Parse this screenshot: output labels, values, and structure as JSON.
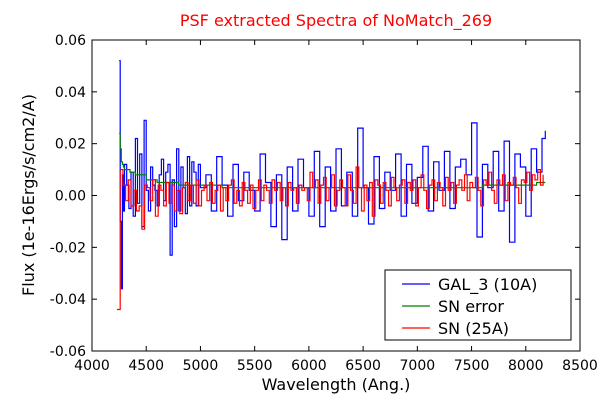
{
  "chart_data": {
    "type": "line",
    "title": "PSF extracted Spectra of NoMatch_269",
    "title_color": "#ff0000",
    "xlabel": "Wavelength (Ang.)",
    "ylabel": "Flux (1e-16Ergs/s/cm2/A)",
    "xlim": [
      4000,
      8500
    ],
    "ylim": [
      -0.06,
      0.06
    ],
    "xticks": [
      4000,
      4500,
      5000,
      5500,
      6000,
      6500,
      7000,
      7500,
      8000,
      8500
    ],
    "xtick_labels": [
      "4000",
      "4500",
      "5000",
      "5500",
      "6000",
      "6500",
      "7000",
      "7500",
      "8000",
      "8500"
    ],
    "yticks": [
      -0.06,
      -0.04,
      -0.02,
      0.0,
      0.02,
      0.04,
      0.06
    ],
    "ytick_labels": [
      "-0.06",
      "-0.04",
      "-0.02",
      "0.00",
      "0.02",
      "0.04",
      "0.06"
    ],
    "grid": false,
    "legend_position": "bottom-right",
    "step": true,
    "series": [
      {
        "name": "GAL_3 (10A)",
        "color": "#0000ff",
        "x": [
          4250,
          4260,
          4270,
          4280,
          4290,
          4300,
          4320,
          4340,
          4360,
          4380,
          4400,
          4420,
          4440,
          4460,
          4480,
          4500,
          4520,
          4540,
          4560,
          4580,
          4600,
          4620,
          4640,
          4660,
          4680,
          4700,
          4720,
          4740,
          4760,
          4780,
          4800,
          4820,
          4840,
          4860,
          4880,
          4900,
          4920,
          4940,
          4960,
          4980,
          5000,
          5050,
          5100,
          5150,
          5200,
          5250,
          5300,
          5350,
          5400,
          5450,
          5500,
          5550,
          5600,
          5650,
          5700,
          5750,
          5800,
          5850,
          5900,
          5950,
          6000,
          6050,
          6100,
          6150,
          6200,
          6250,
          6300,
          6350,
          6400,
          6450,
          6500,
          6550,
          6600,
          6650,
          6700,
          6750,
          6800,
          6850,
          6900,
          6950,
          7000,
          7050,
          7100,
          7150,
          7200,
          7250,
          7300,
          7350,
          7400,
          7450,
          7500,
          7550,
          7600,
          7650,
          7700,
          7750,
          7800,
          7850,
          7900,
          7950,
          8000,
          8050,
          8100,
          8150,
          8180
        ],
        "y": [
          0.052,
          -0.01,
          -0.036,
          0.008,
          -0.006,
          0.012,
          0.004,
          -0.005,
          0.009,
          -0.008,
          0.022,
          -0.003,
          0.016,
          -0.012,
          0.029,
          0.002,
          -0.006,
          0.011,
          0.004,
          0.002,
          -0.004,
          0.008,
          0.014,
          -0.002,
          0.009,
          0.012,
          -0.023,
          0.006,
          -0.012,
          0.018,
          -0.006,
          0.011,
          0.003,
          -0.007,
          0.015,
          -0.004,
          0.013,
          0.009,
          -0.004,
          0.012,
          0.003,
          0.008,
          -0.006,
          0.015,
          0.004,
          -0.008,
          0.012,
          -0.002,
          0.009,
          0.002,
          -0.006,
          0.016,
          0.005,
          -0.012,
          0.008,
          -0.017,
          0.011,
          -0.006,
          0.014,
          0.003,
          -0.008,
          0.017,
          -0.012,
          0.011,
          -0.006,
          0.018,
          -0.004,
          0.009,
          -0.008,
          0.026,
          0.003,
          -0.011,
          0.015,
          -0.005,
          0.009,
          0.002,
          0.016,
          -0.008,
          0.012,
          -0.003,
          0.007,
          0.019,
          -0.006,
          0.013,
          0.002,
          0.017,
          -0.005,
          0.011,
          0.014,
          0.008,
          0.028,
          -0.016,
          0.012,
          0.003,
          0.017,
          -0.006,
          0.021,
          -0.018,
          0.016,
          0.011,
          -0.008,
          0.018,
          0.009,
          0.022,
          0.025
        ]
      },
      {
        "name": "SN error",
        "color": "#008000",
        "x": [
          4250,
          4260,
          4270,
          4280,
          4290,
          4300,
          4350,
          4400,
          4500,
          4600,
          4700,
          4800,
          4900,
          5000,
          5200,
          5400,
          5600,
          5800,
          6000,
          6200,
          6400,
          6600,
          6800,
          7000,
          7200,
          7400,
          7600,
          7800,
          8000,
          8100,
          8180
        ],
        "y": [
          0.024,
          0.018,
          0.013,
          0.012,
          0.011,
          0.01,
          0.009,
          0.008,
          0.006,
          0.005,
          0.005,
          0.004,
          0.004,
          0.004,
          0.003,
          0.003,
          0.003,
          0.003,
          0.003,
          0.003,
          0.003,
          0.003,
          0.003,
          0.003,
          0.003,
          0.003,
          0.004,
          0.004,
          0.004,
          0.005,
          0.005
        ]
      },
      {
        "name": "SN (25A)",
        "color": "#ff0000",
        "x": [
          4230,
          4250,
          4260,
          4285,
          4310,
          4335,
          4360,
          4385,
          4410,
          4435,
          4460,
          4485,
          4510,
          4535,
          4560,
          4585,
          4610,
          4635,
          4660,
          4685,
          4710,
          4735,
          4760,
          4785,
          4810,
          4835,
          4860,
          4885,
          4910,
          4935,
          4960,
          4985,
          5010,
          5035,
          5060,
          5085,
          5110,
          5135,
          5160,
          5185,
          5210,
          5235,
          5260,
          5285,
          5310,
          5335,
          5360,
          5385,
          5410,
          5435,
          5460,
          5485,
          5510,
          5535,
          5560,
          5585,
          5610,
          5635,
          5660,
          5685,
          5710,
          5735,
          5760,
          5785,
          5810,
          5835,
          5860,
          5885,
          5910,
          5935,
          5960,
          5985,
          6010,
          6035,
          6060,
          6085,
          6110,
          6135,
          6160,
          6185,
          6210,
          6235,
          6260,
          6285,
          6310,
          6335,
          6360,
          6385,
          6410,
          6435,
          6460,
          6485,
          6510,
          6535,
          6560,
          6585,
          6610,
          6635,
          6660,
          6685,
          6710,
          6735,
          6760,
          6785,
          6810,
          6835,
          6860,
          6885,
          6910,
          6935,
          6960,
          6985,
          7010,
          7035,
          7060,
          7085,
          7110,
          7135,
          7160,
          7185,
          7210,
          7235,
          7260,
          7285,
          7310,
          7335,
          7360,
          7385,
          7410,
          7435,
          7460,
          7485,
          7510,
          7535,
          7560,
          7585,
          7610,
          7635,
          7660,
          7685,
          7710,
          7735,
          7760,
          7785,
          7810,
          7835,
          7860,
          7885,
          7910,
          7935,
          7960,
          7985,
          8010,
          8035,
          8060,
          8085,
          8110,
          8135,
          8160
        ],
        "y": [
          -0.044,
          -0.044,
          0.01,
          0.004,
          -0.002,
          0.006,
          -0.004,
          0.002,
          -0.006,
          -0.004,
          -0.013,
          0.004,
          0.003,
          -0.002,
          0.006,
          -0.008,
          0.004,
          0.002,
          -0.004,
          0.005,
          -0.003,
          0.004,
          -0.006,
          0.002,
          -0.007,
          0.003,
          0.005,
          -0.002,
          0.004,
          -0.003,
          0.006,
          -0.004,
          0.002,
          0.004,
          -0.002,
          0.005,
          -0.003,
          0.002,
          0.004,
          -0.006,
          0.003,
          -0.002,
          0.004,
          0.006,
          -0.003,
          0.002,
          -0.004,
          0.005,
          0.002,
          -0.003,
          0.004,
          -0.005,
          0.002,
          0.006,
          -0.002,
          0.004,
          0.002,
          -0.003,
          0.006,
          0.002,
          0.005,
          -0.002,
          0.003,
          -0.004,
          0.005,
          0.002,
          0.003,
          -0.003,
          0.004,
          0.002,
          0.003,
          -0.002,
          0.009,
          0.003,
          0.006,
          -0.003,
          0.004,
          0.007,
          -0.002,
          0.003,
          0.008,
          -0.004,
          0.002,
          0.006,
          0.003,
          -0.004,
          0.008,
          0.002,
          -0.003,
          0.011,
          0.003,
          -0.006,
          0.004,
          -0.002,
          0.005,
          -0.008,
          0.006,
          0.004,
          -0.003,
          0.005,
          0.002,
          -0.004,
          0.007,
          0.003,
          -0.002,
          0.004,
          0.006,
          -0.003,
          0.005,
          0.002,
          0.006,
          -0.004,
          0.003,
          0.008,
          0.002,
          -0.005,
          0.004,
          0.006,
          -0.002,
          0.005,
          0.003,
          -0.004,
          0.007,
          0.002,
          0.005,
          -0.003,
          0.004,
          0.006,
          0.002,
          0.008,
          -0.002,
          0.005,
          0.003,
          0.007,
          0.002,
          -0.004,
          0.006,
          0.004,
          0.009,
          0.002,
          -0.003,
          0.006,
          0.004,
          0.008,
          -0.002,
          0.005,
          0.004,
          0.007,
          0.003,
          -0.003,
          0.006,
          0.005,
          0.009,
          0.002,
          0.008,
          0.006,
          0.01,
          0.004,
          0.008
        ]
      }
    ]
  }
}
